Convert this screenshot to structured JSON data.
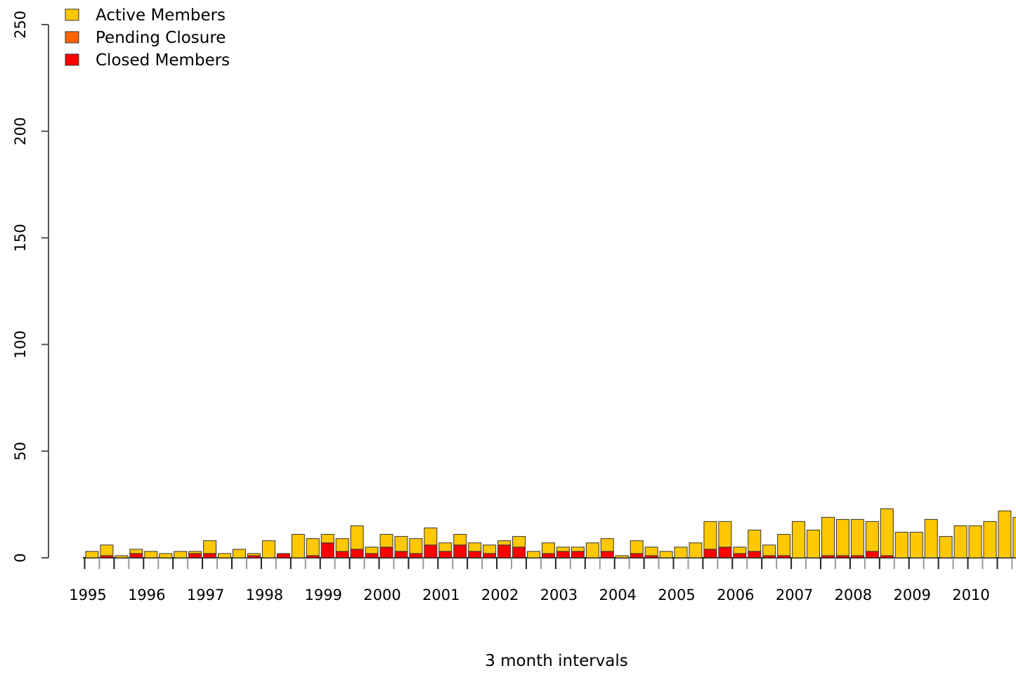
{
  "chart_data": {
    "type": "bar",
    "stacked": true,
    "title": "",
    "xlabel": "3 month intervals",
    "ylabel": "",
    "ylim": [
      0,
      250
    ],
    "y_ticks": [
      0,
      50,
      100,
      150,
      200,
      250
    ],
    "grid": false,
    "legend_position": "top-left",
    "x_tick_labels": [
      "1995",
      "1996",
      "1997",
      "1998",
      "1999",
      "2000",
      "2001",
      "2002",
      "2003",
      "2004",
      "2005",
      "2006",
      "2007",
      "2008",
      "2009",
      "2010"
    ],
    "bars_per_label": 4,
    "colors": {
      "Active Members": "#ffc800",
      "Pending Closure": "#ff6600",
      "Closed Members": "#ff0000"
    },
    "series": [
      {
        "name": "Closed Members",
        "values": [
          0,
          1,
          0,
          2,
          0,
          0,
          0,
          2,
          2,
          0,
          0,
          1,
          0,
          2,
          0,
          1,
          7,
          3,
          4,
          2,
          5,
          3,
          2,
          6,
          3,
          6,
          3,
          2,
          6,
          5,
          0,
          2,
          3,
          3,
          0,
          3,
          0,
          2,
          1,
          0,
          0,
          0,
          4,
          5,
          2,
          3,
          1,
          1,
          0,
          0,
          1,
          1,
          1,
          3,
          1,
          0,
          0,
          0,
          0,
          0,
          0,
          0,
          0,
          0
        ]
      },
      {
        "name": "Pending Closure",
        "values": [
          0,
          0,
          0,
          0,
          0,
          0,
          0,
          0,
          0,
          0,
          0,
          0,
          0,
          0,
          0,
          0,
          0,
          0,
          0,
          0,
          0,
          0,
          0,
          0,
          0,
          0,
          0,
          0,
          0,
          0,
          0,
          0,
          0,
          0,
          0,
          0,
          0,
          0,
          0,
          0,
          0,
          0,
          0,
          0,
          0,
          0,
          0,
          0,
          0,
          0,
          0,
          0,
          0,
          0,
          0,
          0,
          0,
          0,
          0,
          0,
          0,
          0,
          0,
          0
        ]
      },
      {
        "name": "Active Members",
        "values": [
          3,
          5,
          1,
          2,
          3,
          2,
          3,
          1,
          6,
          2,
          4,
          1,
          8,
          0,
          11,
          8,
          4,
          6,
          11,
          3,
          6,
          7,
          7,
          8,
          4,
          5,
          4,
          4,
          2,
          5,
          3,
          5,
          2,
          2,
          7,
          6,
          1,
          6,
          4,
          3,
          5,
          7,
          13,
          12,
          3,
          10,
          5,
          10,
          17,
          13,
          18,
          17,
          17,
          14,
          22,
          12,
          12,
          18,
          10,
          15,
          15,
          17,
          22,
          19
        ]
      }
    ]
  }
}
